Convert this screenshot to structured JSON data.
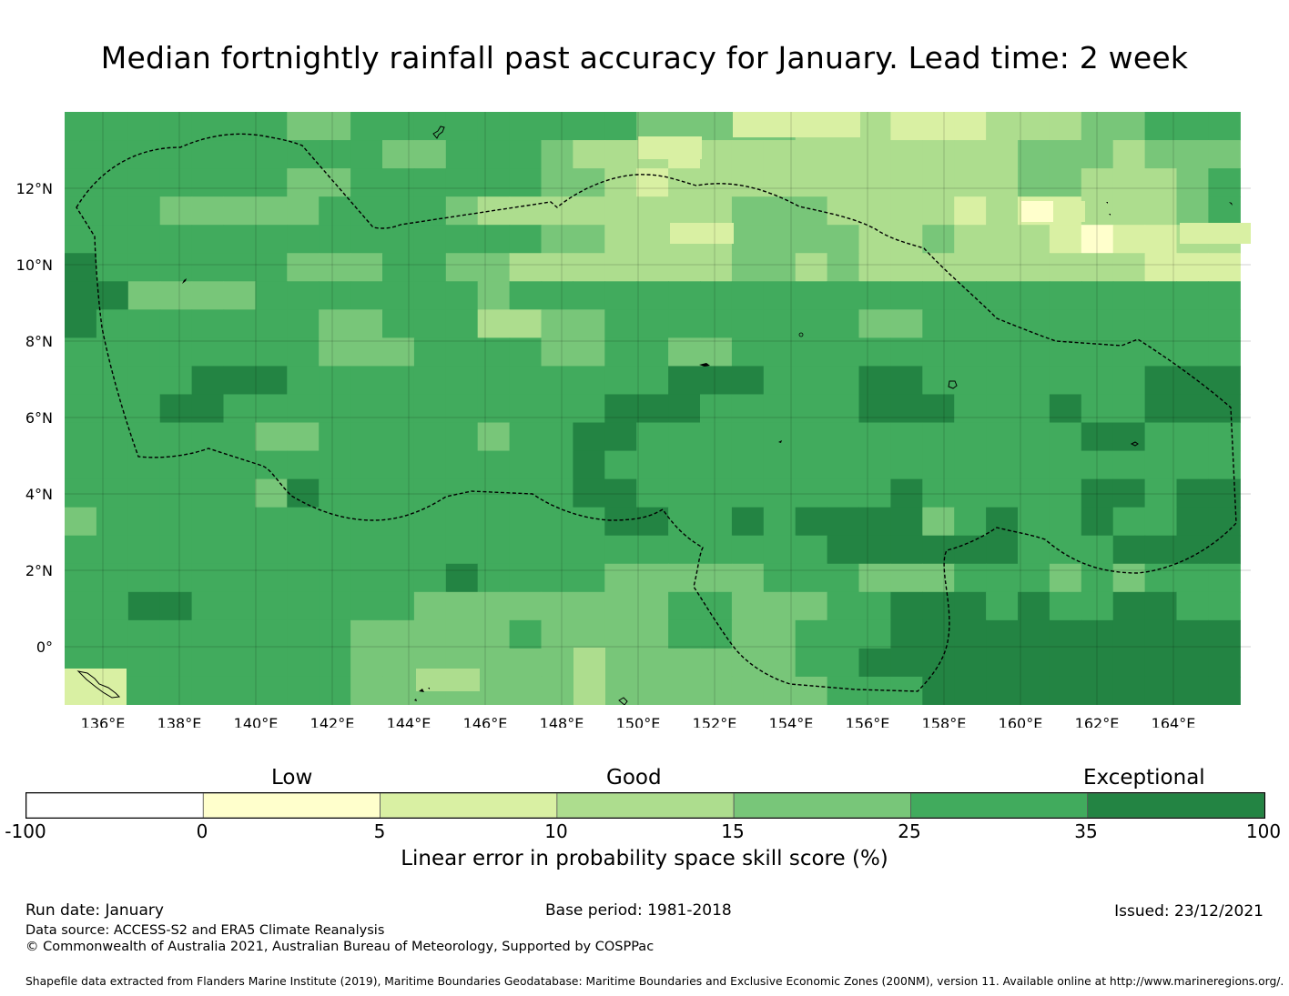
{
  "title": "Median fortnightly rainfall past accuracy for January. Lead time: 2 week",
  "map": {
    "lon_ticks": [
      "136°E",
      "138°E",
      "140°E",
      "142°E",
      "144°E",
      "146°E",
      "148°E",
      "150°E",
      "152°E",
      "154°E",
      "156°E",
      "158°E",
      "160°E",
      "162°E",
      "164°E"
    ],
    "lat_ticks": [
      "12°N",
      "10°N",
      "8°N",
      "6°N",
      "4°N",
      "2°N",
      "0°"
    ],
    "palette": [
      "#ffffcc",
      "#d9f0a3",
      "#addd8e",
      "#78c679",
      "#41ab5d",
      "#238443"
    ]
  },
  "colorbar": {
    "category_labels": [
      "Low",
      "Good",
      "Exceptional"
    ],
    "ticks": [
      "-100",
      "0",
      "5",
      "10",
      "15",
      "25",
      "35",
      "100"
    ],
    "colors": [
      "#ffffff",
      "#ffffcc",
      "#d9f0a3",
      "#addd8e",
      "#78c679",
      "#41ab5d",
      "#238443"
    ],
    "label": "Linear error in probability space skill score (%)"
  },
  "footer": {
    "run_date": "Run date: January",
    "base_period": "Base period: 1981-2018",
    "issued": "Issued: 23/12/2021",
    "data_source": "Data source: ACCESS-S2 and ERA5 Climate Reanalysis",
    "copyright": "© Commonwealth of Australia 2021, Australian Bureau of Meteorology, Supported by COSPPac",
    "shapefile": "Shapefile data extracted from Flanders Marine Institute (2019), Maritime Boundaries Geodatabase: Maritime Boundaries and Exclusive Economic Zones (200NM), version 11. Available online at http://www.marineregions.org/."
  }
}
